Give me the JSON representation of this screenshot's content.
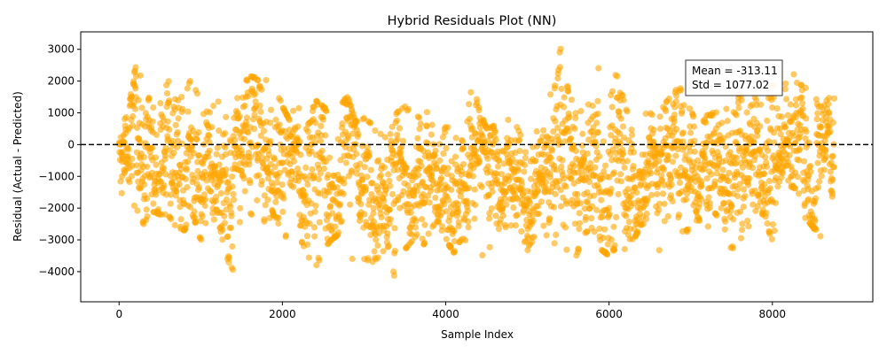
{
  "chart_data": {
    "type": "scatter",
    "title": "Hybrid Residuals Plot (NN)",
    "xlabel": "Sample Index",
    "ylabel": "Residual (Actual - Predicted)",
    "xlim": [
      -470,
      9230
    ],
    "ylim": [
      -4950,
      3550
    ],
    "xticks": [
      0,
      2000,
      4000,
      6000,
      8000
    ],
    "yticks": [
      -4000,
      -3000,
      -2000,
      -1000,
      0,
      1000,
      2000,
      3000
    ],
    "xtick_labels": [
      "0",
      "2000",
      "4000",
      "6000",
      "8000"
    ],
    "ytick_labels": [
      "−4000",
      "−3000",
      "−2000",
      "−1000",
      "0",
      "1000",
      "2000",
      "3000"
    ],
    "reference_line": {
      "y": 0,
      "style": "dashed",
      "color": "#000000"
    },
    "annotation": {
      "mean_text": "Mean = -313.11",
      "std_text": "Std = 1077.02"
    },
    "series": [
      {
        "color": "#ffa500",
        "opacity": 0.6,
        "n_points": 8760,
        "mean": -313.11,
        "std": 1077.02,
        "envelope": {
          "x": [
            0,
            100,
            200,
            300,
            400,
            500,
            600,
            700,
            800,
            900,
            1000,
            1100,
            1200,
            1300,
            1400,
            1500,
            1600,
            1700,
            1800,
            1900,
            2000,
            2100,
            2200,
            2300,
            2400,
            2500,
            2600,
            2700,
            2800,
            2900,
            3000,
            3100,
            3200,
            3300,
            3400,
            3500,
            3600,
            3700,
            3800,
            3900,
            4000,
            4100,
            4200,
            4300,
            4400,
            4500,
            4600,
            4700,
            4800,
            4900,
            5000,
            5100,
            5200,
            5300,
            5400,
            5500,
            5600,
            5700,
            5800,
            5900,
            6000,
            6100,
            6200,
            6300,
            6400,
            6500,
            6600,
            6700,
            6800,
            6900,
            7000,
            7100,
            7200,
            7300,
            7400,
            7500,
            7600,
            7700,
            7800,
            7900,
            8000,
            8100,
            8200,
            8300,
            8400,
            8500,
            8600,
            8700
          ],
          "upper": [
            600,
            900,
            2450,
            2000,
            1200,
            1300,
            2100,
            1400,
            1650,
            2150,
            1200,
            1000,
            1500,
            900,
            1300,
            2000,
            2150,
            2100,
            2100,
            2000,
            1200,
            700,
            1800,
            500,
            1400,
            1200,
            1000,
            1300,
            1500,
            700,
            900,
            700,
            400,
            200,
            1000,
            1200,
            1000,
            800,
            1200,
            900,
            600,
            600,
            800,
            2350,
            1200,
            500,
            600,
            200,
            1100,
            400,
            200,
            400,
            500,
            1800,
            3100,
            1700,
            1000,
            1100,
            2950,
            2300,
            2600,
            2200,
            1200,
            800,
            1000,
            1000,
            800,
            1400,
            1700,
            1800,
            1100,
            500,
            1000,
            1000,
            1100,
            1200,
            1600,
            1000,
            1600,
            1000,
            2000,
            600,
            2700,
            2000,
            1900,
            1300,
            1800,
            1500
          ],
          "lower": [
            -1400,
            -1900,
            -2000,
            -2500,
            -2100,
            -2200,
            -2200,
            -2600,
            -2700,
            -2200,
            -3000,
            -2800,
            -2200,
            -3400,
            -4100,
            -2500,
            -2200,
            -2500,
            -2400,
            -2200,
            -3600,
            -2000,
            -2800,
            -3500,
            -4000,
            -3300,
            -3000,
            -2800,
            -3500,
            -3800,
            -3600,
            -3700,
            -3500,
            -3200,
            -4650,
            -3300,
            -3000,
            -3300,
            -2800,
            -2400,
            -3000,
            -3400,
            -3000,
            -3200,
            -3500,
            -3600,
            -2800,
            -2600,
            -2600,
            -2500,
            -3400,
            -2800,
            -2600,
            -3500,
            -2500,
            -3600,
            -3500,
            -2800,
            -2600,
            -3300,
            -3500,
            -3200,
            -3300,
            -3000,
            -2500,
            -2500,
            -3600,
            -2200,
            -2700,
            -2800,
            -2700,
            -2300,
            -3700,
            -2200,
            -2700,
            -3300,
            -3100,
            -2600,
            -2200,
            -2200,
            -3100,
            -1700,
            -1300,
            -1400,
            -2300,
            -2600,
            -3000,
            -1700
          ]
        }
      }
    ]
  }
}
